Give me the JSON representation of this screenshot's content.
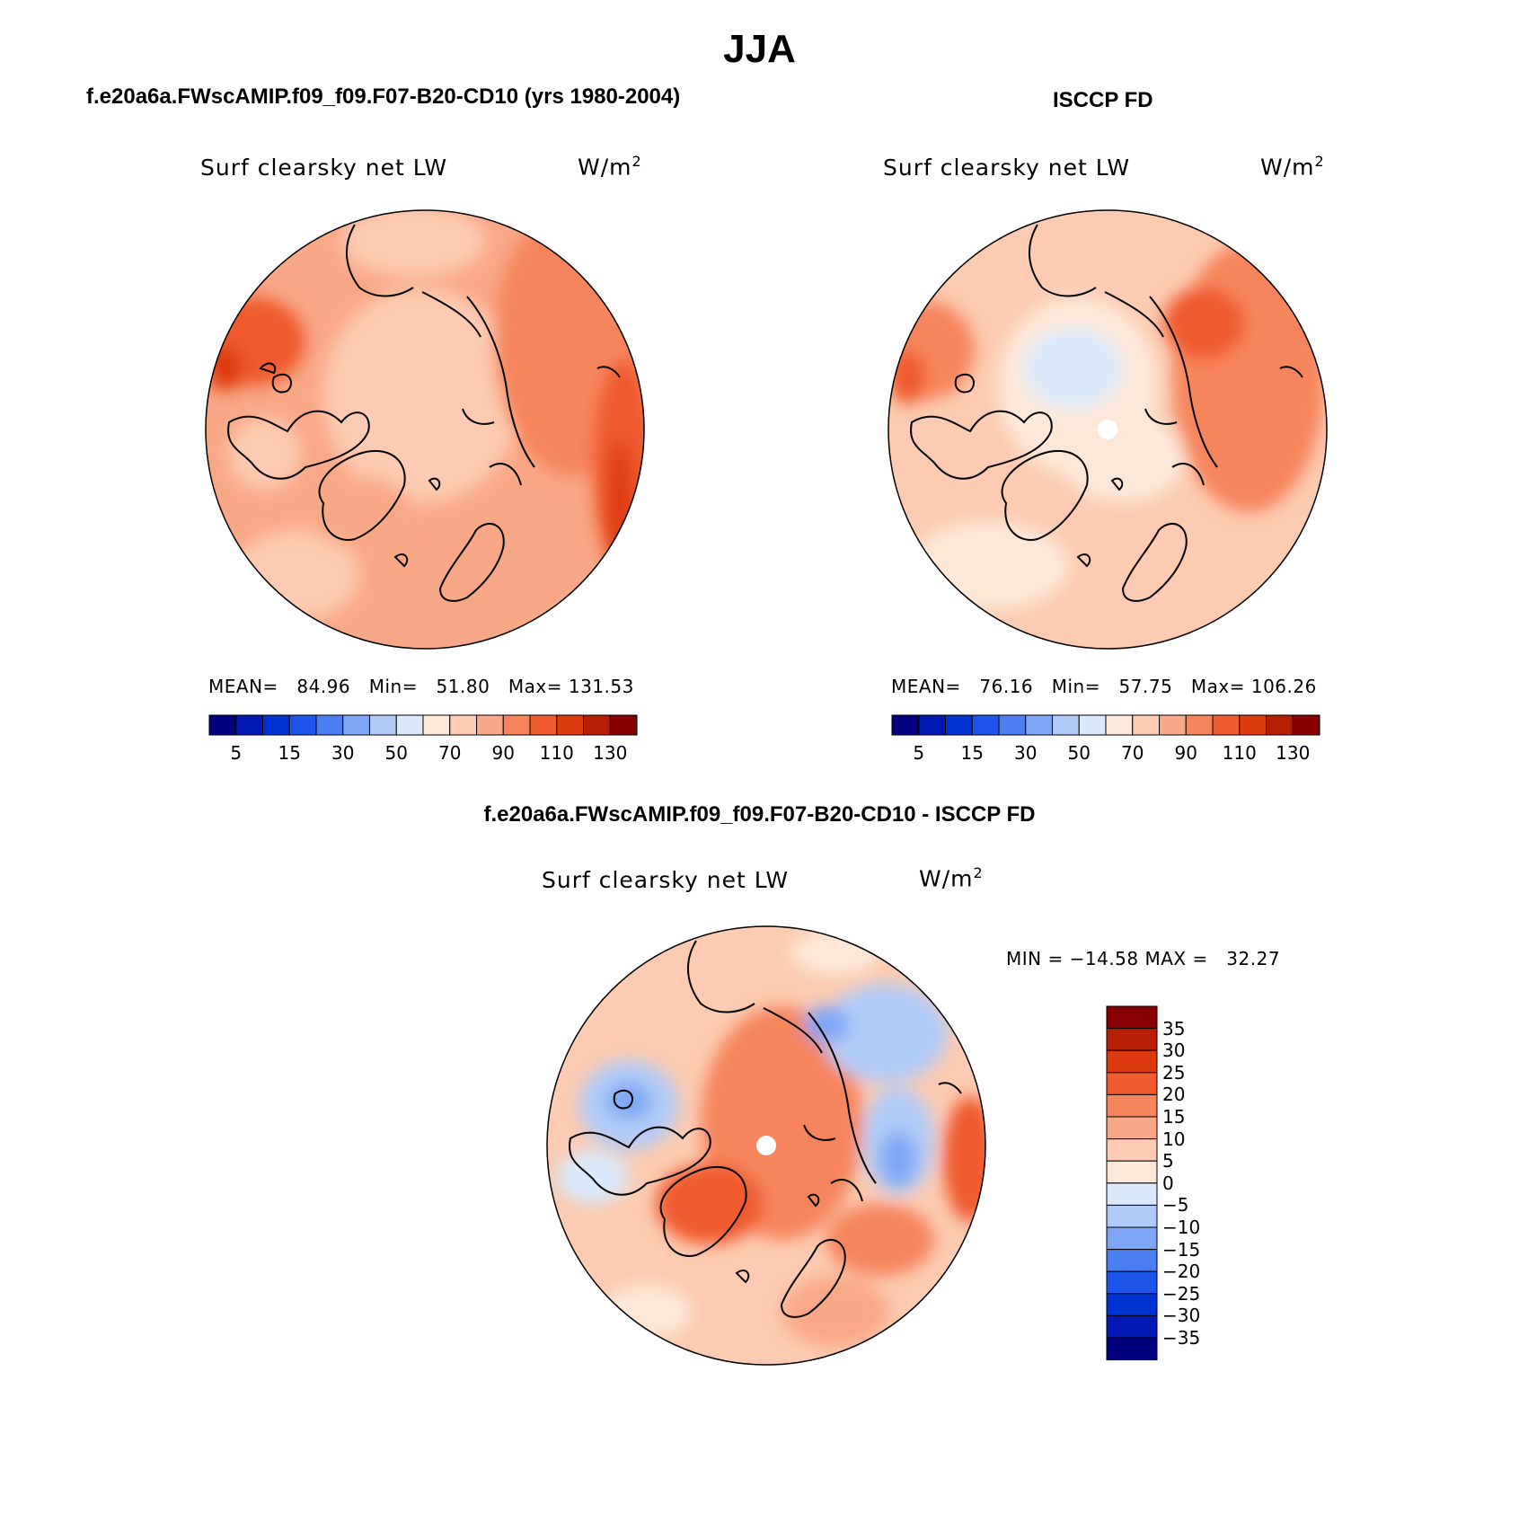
{
  "title": "JJA",
  "panels": {
    "left": {
      "case_title": "f.e20a6a.FWscAMIP.f09_f09.F07-B20-CD10 (yrs 1980-2004)",
      "variable": "Surf clearsky net LW",
      "units_base": "W/m",
      "units_exp": "2",
      "stats": {
        "mean_label": "MEAN=",
        "mean": "84.96",
        "min_label": "Min=",
        "min": "51.80",
        "max_label": "Max=",
        "max": "131.53"
      }
    },
    "right": {
      "case_title": "ISCCP FD",
      "variable": "Surf clearsky net LW",
      "units_base": "W/m",
      "units_exp": "2",
      "stats": {
        "mean_label": "MEAN=",
        "mean": "76.16",
        "min_label": "Min=",
        "min": "57.75",
        "max_label": "Max=",
        "max": "106.26"
      }
    },
    "bottom": {
      "case_title": "f.e20a6a.FWscAMIP.f09_f09.F07-B20-CD10 - ISCCP FD",
      "variable": "Surf clearsky net LW",
      "units_base": "W/m",
      "units_exp": "2",
      "minmax_text": "MIN = −14.58 MAX =   32.27"
    }
  },
  "horizontal_colorbar": {
    "colors": [
      "#00007f",
      "#0018b4",
      "#0034d2",
      "#1d54e9",
      "#4b7ef1",
      "#7ea6f5",
      "#b0cbf8",
      "#d9e9fb",
      "#fde8d8",
      "#fccbb1",
      "#f9a887",
      "#f6845c",
      "#f05a2f",
      "#de3a0f",
      "#b81d05",
      "#890000"
    ],
    "tick_labels": [
      "5",
      "15",
      "30",
      "50",
      "70",
      "90",
      "110",
      "130"
    ]
  },
  "vertical_colorbar": {
    "colors_top_to_bottom": [
      "#890000",
      "#b81d05",
      "#de3a0f",
      "#f05a2f",
      "#f6845c",
      "#f9a887",
      "#fccbb1",
      "#fde8d8",
      "#d9e9fb",
      "#b0cbf8",
      "#7ea6f5",
      "#4b7ef1",
      "#1d54e9",
      "#0034d2",
      "#0018b4",
      "#00007f"
    ],
    "tick_labels": [
      "35",
      "30",
      "25",
      "20",
      "15",
      "10",
      "5",
      "0",
      "−5",
      "−10",
      "−15",
      "−20",
      "−25",
      "−30",
      "−35"
    ]
  },
  "chart_data": [
    {
      "type": "heatmap",
      "title": "Surf clearsky net LW",
      "subtitle": "f.e20a6a.FWscAMIP.f09_f09.F07-B20-CD10 (yrs 1980-2004)",
      "projection": "north polar stereographic",
      "units": "W/m2",
      "mean": 84.96,
      "min": 51.8,
      "max": 131.53,
      "levels": [
        5,
        10,
        15,
        20,
        30,
        40,
        50,
        60,
        70,
        80,
        90,
        100,
        110,
        120,
        130
      ],
      "regions": {
        "arctic_ocean": 70,
        "greenland": 85,
        "north_america": 90,
        "eurasia_east": 105,
        "north_pacific": 115
      }
    },
    {
      "type": "heatmap",
      "title": "Surf clearsky net LW",
      "subtitle": "ISCCP FD",
      "projection": "north polar stereographic",
      "units": "W/m2",
      "mean": 76.16,
      "min": 57.75,
      "max": 106.26,
      "levels": [
        5,
        10,
        15,
        20,
        30,
        40,
        50,
        60,
        70,
        80,
        90,
        100,
        110,
        120,
        130
      ],
      "regions": {
        "arctic_ocean": 58,
        "greenland": 65,
        "north_america": 85,
        "eurasia_east": 100,
        "north_pacific": 80
      }
    },
    {
      "type": "heatmap",
      "title": "Surf clearsky net LW",
      "subtitle": "f.e20a6a.FWscAMIP.f09_f09.F07-B20-CD10 - ISCCP FD",
      "projection": "north polar stereographic",
      "units": "W/m2",
      "min": -14.58,
      "max": 32.27,
      "levels": [
        -35,
        -30,
        -25,
        -20,
        -15,
        -10,
        -5,
        0,
        5,
        10,
        15,
        20,
        25,
        30,
        35
      ],
      "regions": {
        "arctic_ocean": 17,
        "greenland": 20,
        "siberia": -8,
        "canadian_archipelago": -8,
        "north_pacific": 12
      }
    }
  ]
}
